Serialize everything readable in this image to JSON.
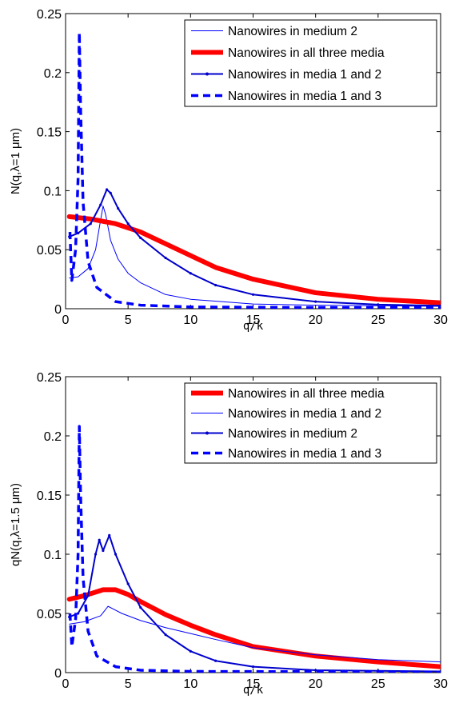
{
  "chart_data": [
    {
      "type": "line",
      "xlabel": "q/k",
      "ylabel": "N(q,λ=1 μm)",
      "xlim": [
        0,
        30
      ],
      "ylim": [
        0,
        0.25
      ],
      "xticks": [
        "0",
        "5",
        "10",
        "15",
        "20",
        "25",
        "30"
      ],
      "yticks": [
        "0",
        "0.05",
        "0.1",
        "0.15",
        "0.2",
        "0.25"
      ],
      "grid": false,
      "legend_position": "top-right",
      "series": [
        {
          "name": "Nanowires in medium 2",
          "color": "#0000ff",
          "style": "thin",
          "points": [
            [
              0.3,
              0.026
            ],
            [
              1.0,
              0.027
            ],
            [
              1.8,
              0.034
            ],
            [
              2.4,
              0.05
            ],
            [
              2.8,
              0.075
            ],
            [
              3.0,
              0.087
            ],
            [
              3.2,
              0.08
            ],
            [
              3.6,
              0.058
            ],
            [
              4.2,
              0.042
            ],
            [
              5,
              0.03
            ],
            [
              6,
              0.022
            ],
            [
              8,
              0.012
            ],
            [
              10,
              0.008
            ],
            [
              15,
              0.004
            ],
            [
              20,
              0.003
            ],
            [
              25,
              0.0025
            ],
            [
              30,
              0.002
            ]
          ]
        },
        {
          "name": "Nanowires in all three media",
          "color": "#ff0000",
          "style": "thick",
          "points": [
            [
              0.3,
              0.078
            ],
            [
              2,
              0.076
            ],
            [
              4,
              0.072
            ],
            [
              6,
              0.065
            ],
            [
              8,
              0.055
            ],
            [
              10,
              0.045
            ],
            [
              12,
              0.035
            ],
            [
              15,
              0.025
            ],
            [
              20,
              0.0135
            ],
            [
              25,
              0.008
            ],
            [
              30,
              0.005
            ]
          ]
        },
        {
          "name": "Nanowires in media 1 and 2",
          "color": "#0000cc",
          "style": "dotted-marker",
          "points": [
            [
              0.3,
              0.061
            ],
            [
              1.0,
              0.064
            ],
            [
              2.0,
              0.072
            ],
            [
              2.8,
              0.088
            ],
            [
              3.3,
              0.101
            ],
            [
              3.6,
              0.098
            ],
            [
              4.2,
              0.085
            ],
            [
              5,
              0.072
            ],
            [
              6,
              0.06
            ],
            [
              8,
              0.043
            ],
            [
              10,
              0.03
            ],
            [
              12,
              0.02
            ],
            [
              15,
              0.012
            ],
            [
              20,
              0.006
            ],
            [
              25,
              0.0035
            ],
            [
              30,
              0.0025
            ]
          ]
        },
        {
          "name": "Nanowires in media 1 and 3",
          "color": "#0000ff",
          "style": "dashed",
          "points": [
            [
              0.35,
              0.065
            ],
            [
              0.5,
              0.024
            ],
            [
              0.8,
              0.05
            ],
            [
              1.0,
              0.11
            ],
            [
              1.1,
              0.234
            ],
            [
              1.2,
              0.17
            ],
            [
              1.4,
              0.09
            ],
            [
              1.8,
              0.04
            ],
            [
              2.5,
              0.018
            ],
            [
              4,
              0.006
            ],
            [
              6,
              0.003
            ],
            [
              10,
              0.0015
            ],
            [
              20,
              0.001
            ],
            [
              30,
              0.0008
            ]
          ]
        }
      ]
    },
    {
      "type": "line",
      "xlabel": "q/k",
      "ylabel": "qN(q,λ=1.5 μm)",
      "xlim": [
        0,
        30
      ],
      "ylim": [
        0,
        0.25
      ],
      "xticks": [
        "0",
        "5",
        "10",
        "15",
        "20",
        "25",
        "30"
      ],
      "yticks": [
        "0",
        "0.05",
        "0.1",
        "0.15",
        "0.2",
        "0.25"
      ],
      "grid": false,
      "legend_position": "top-right",
      "series": [
        {
          "name": "Nanowires in all three media",
          "color": "#ff0000",
          "style": "thick",
          "points": [
            [
              0.3,
              0.062
            ],
            [
              1.5,
              0.065
            ],
            [
              3,
              0.07
            ],
            [
              4,
              0.07
            ],
            [
              5,
              0.066
            ],
            [
              6,
              0.06
            ],
            [
              8,
              0.049
            ],
            [
              10,
              0.04
            ],
            [
              12,
              0.032
            ],
            [
              15,
              0.022
            ],
            [
              20,
              0.014
            ],
            [
              25,
              0.009
            ],
            [
              30,
              0.005
            ]
          ]
        },
        {
          "name": "Nanowires in media 1 and 2",
          "color": "#0000ff",
          "style": "thin",
          "points": [
            [
              0.3,
              0.041
            ],
            [
              1.5,
              0.043
            ],
            [
              2.8,
              0.048
            ],
            [
              3.4,
              0.056
            ],
            [
              4.5,
              0.05
            ],
            [
              6,
              0.044
            ],
            [
              8,
              0.038
            ],
            [
              10,
              0.033
            ],
            [
              12,
              0.028
            ],
            [
              15,
              0.021
            ],
            [
              20,
              0.015
            ],
            [
              25,
              0.011
            ],
            [
              30,
              0.009
            ]
          ]
        },
        {
          "name": "Nanowires in medium 2",
          "color": "#0000cc",
          "style": "dotted-marker",
          "points": [
            [
              0.3,
              0.047
            ],
            [
              1.0,
              0.05
            ],
            [
              1.8,
              0.065
            ],
            [
              2.4,
              0.1
            ],
            [
              2.7,
              0.112
            ],
            [
              3.0,
              0.103
            ],
            [
              3.5,
              0.116
            ],
            [
              4.0,
              0.1
            ],
            [
              5,
              0.075
            ],
            [
              6,
              0.055
            ],
            [
              8,
              0.032
            ],
            [
              10,
              0.018
            ],
            [
              12,
              0.01
            ],
            [
              15,
              0.005
            ],
            [
              20,
              0.002
            ],
            [
              25,
              0.0015
            ],
            [
              30,
              0.001
            ]
          ]
        },
        {
          "name": "Nanowires in media 1 and 3",
          "color": "#0000ff",
          "style": "dashed",
          "points": [
            [
              0.35,
              0.05
            ],
            [
              0.5,
              0.022
            ],
            [
              0.8,
              0.045
            ],
            [
              1.0,
              0.1
            ],
            [
              1.1,
              0.208
            ],
            [
              1.2,
              0.15
            ],
            [
              1.4,
              0.08
            ],
            [
              1.8,
              0.035
            ],
            [
              2.5,
              0.014
            ],
            [
              4,
              0.005
            ],
            [
              6,
              0.002
            ],
            [
              10,
              0.001
            ],
            [
              20,
              0.0008
            ],
            [
              30,
              0.0005
            ]
          ]
        }
      ]
    }
  ]
}
